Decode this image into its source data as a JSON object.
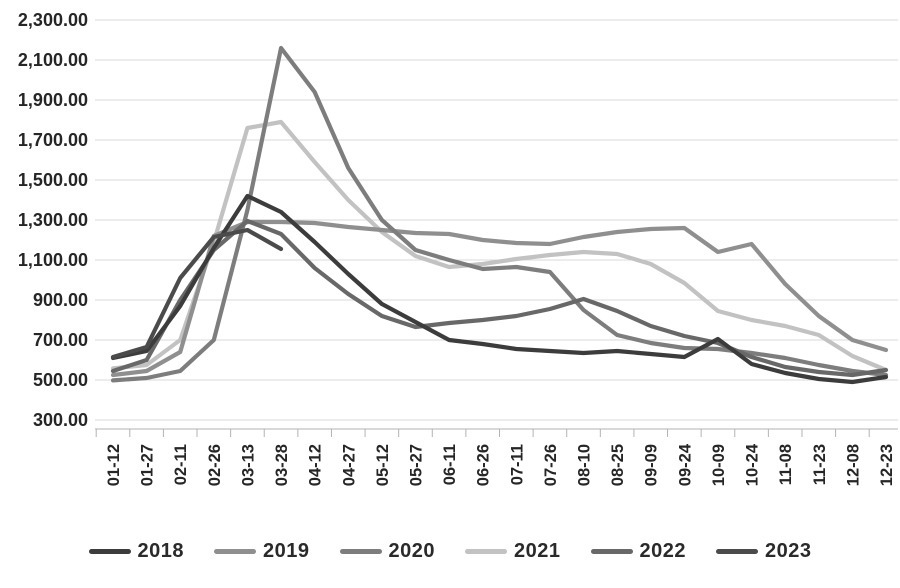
{
  "chart_data": {
    "type": "line",
    "title": "",
    "xlabel": "",
    "ylabel": "",
    "ylim": [
      300,
      2300
    ],
    "y_tick_step": 200,
    "y_tick_labels": [
      "2,300.00",
      "2,100.00",
      "1,900.00",
      "1,700.00",
      "1,500.00",
      "1,300.00",
      "1,100.00",
      "900.00",
      "700.00",
      "500.00",
      "300.00"
    ],
    "grid": "horizontal",
    "gridline_color": "#d9d9d9",
    "axis_line_color": "#b3b3b3",
    "legend_position": "bottom",
    "x_tick_labels": [
      "01-12",
      "01-27",
      "02-11",
      "02-26",
      "03-13",
      "03-28",
      "04-12",
      "04-27",
      "05-12",
      "05-27",
      "06-11",
      "06-26",
      "07-11",
      "07-26",
      "08-10",
      "08-25",
      "09-09",
      "09-24",
      "10-09",
      "10-24",
      "11-08",
      "11-23",
      "12-08",
      "12-23"
    ],
    "series": [
      {
        "name": "2018",
        "color": "#3c3c3c",
        "values": [
          610,
          645,
          870,
          1160,
          1420,
          1340,
          1190,
          1030,
          880,
          790,
          700,
          680,
          655,
          645,
          635,
          645,
          630,
          615,
          705,
          580,
          535,
          505,
          490,
          515
        ]
      },
      {
        "name": "2019",
        "color": "#8f8f8f",
        "values": [
          525,
          545,
          640,
          1220,
          1290,
          1290,
          1285,
          1265,
          1250,
          1235,
          1230,
          1200,
          1185,
          1180,
          1215,
          1240,
          1255,
          1260,
          1140,
          1180,
          980,
          820,
          700,
          650
        ]
      },
      {
        "name": "2020",
        "color": "#7d7d7d",
        "values": [
          498,
          510,
          545,
          700,
          1350,
          2160,
          1940,
          1560,
          1300,
          1150,
          1100,
          1055,
          1065,
          1040,
          850,
          725,
          685,
          660,
          655,
          635,
          610,
          575,
          545,
          525
        ]
      },
      {
        "name": "2021",
        "color": "#c2c2c2",
        "values": [
          558,
          575,
          700,
          1190,
          1760,
          1790,
          1590,
          1400,
          1240,
          1120,
          1065,
          1080,
          1105,
          1125,
          1140,
          1130,
          1080,
          985,
          845,
          800,
          770,
          725,
          620,
          550
        ]
      },
      {
        "name": "2022",
        "color": "#686868",
        "values": [
          545,
          600,
          900,
          1150,
          1295,
          1230,
          1060,
          930,
          820,
          765,
          785,
          800,
          820,
          855,
          905,
          845,
          770,
          720,
          685,
          615,
          565,
          540,
          525,
          550
        ]
      },
      {
        "name": "2023",
        "color": "#4b4b4b",
        "values": [
          615,
          665,
          1010,
          1215,
          1250,
          1155,
          null,
          null,
          null,
          null,
          null,
          null,
          null,
          null,
          null,
          null,
          null,
          null,
          null,
          null,
          null,
          null,
          null,
          null
        ]
      }
    ]
  }
}
